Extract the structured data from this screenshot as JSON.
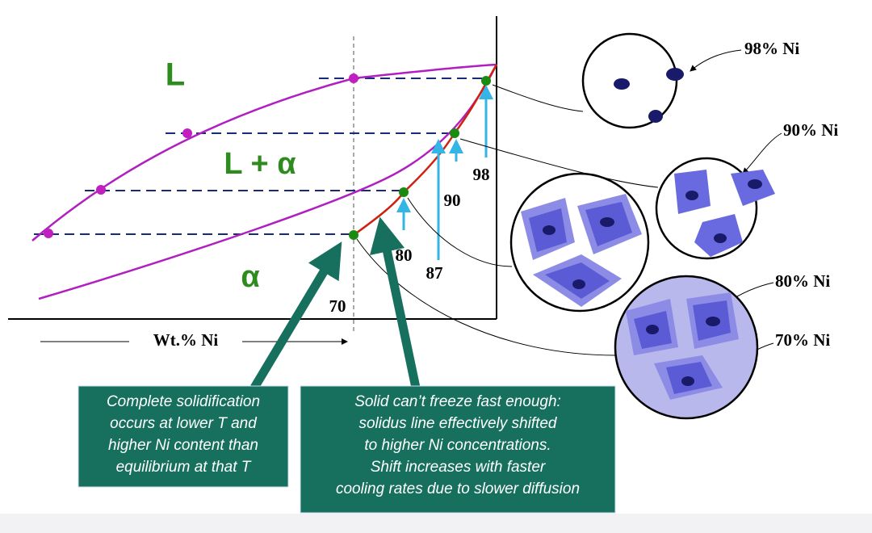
{
  "regions": {
    "liquid": "L",
    "two_phase": "L + α",
    "solid": "α"
  },
  "axis_label": "Wt.% Ni",
  "compositions": [
    "70",
    "80",
    "87",
    "90",
    "98"
  ],
  "micrographs": [
    "98% Ni",
    "90% Ni",
    "80% Ni",
    "70% Ni"
  ],
  "callouts": [
    {
      "lines": [
        "Complete solidification",
        "occurs at lower T and",
        "higher Ni content than",
        "equilibrium at that T"
      ]
    },
    {
      "lines": [
        "Solid can’t freeze fast enough:",
        "solidus line effectively shifted",
        "to higher Ni concentrations.",
        "Shift increases with faster",
        "cooling rates due to slower diffusion"
      ]
    }
  ]
}
